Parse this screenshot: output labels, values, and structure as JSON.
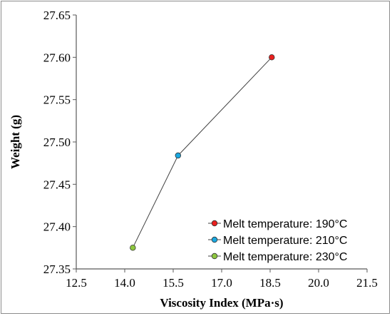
{
  "chart_data": {
    "type": "scatter",
    "title": "",
    "xlabel": "Viscosity Index (MPa·s)",
    "ylabel": "Weight (g)",
    "xlim": [
      12.5,
      21.5
    ],
    "ylim": [
      27.35,
      27.65
    ],
    "xticks": [
      "12.5",
      "14.0",
      "15.5",
      "17.0",
      "18.5",
      "20.0",
      "21.5"
    ],
    "yticks": [
      "27.35",
      "27.40",
      "27.45",
      "27.50",
      "27.55",
      "27.60",
      "27.65"
    ],
    "grid": false,
    "legend_position": "bottom-right",
    "line_color": "#404040",
    "series": [
      {
        "name": "Melt temperature: 190°C",
        "color": "#e8201e",
        "x": [
          18.55
        ],
        "y": [
          27.6
        ]
      },
      {
        "name": "Melt temperature: 210°C",
        "color": "#1aa8e0",
        "x": [
          15.65
        ],
        "y": [
          27.484
        ]
      },
      {
        "name": "Melt temperature: 230°C",
        "color": "#8dc63f",
        "x": [
          14.25
        ],
        "y": [
          27.375
        ]
      }
    ]
  }
}
